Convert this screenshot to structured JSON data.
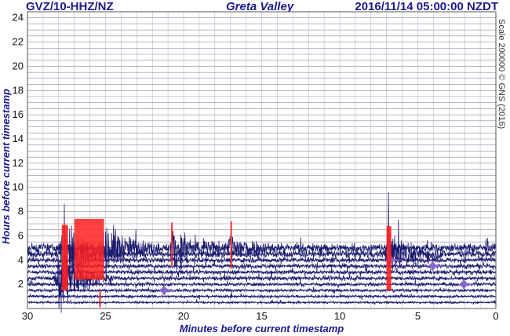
{
  "header": {
    "station": "GVZ/10-HHZ/NZ",
    "place": "Greta Valley",
    "timestamp": "2016/11/14 05:00:00 NZDT"
  },
  "side_note": "Scale 200000 © GNS (2016)",
  "colors": {
    "trace_main": "#1a1a6e",
    "trace_highlight": "#8866cc",
    "event_mark": "#ff2020",
    "grid": "#8a8aa0",
    "title_text": "#1a1a8c"
  },
  "chart_data": {
    "type": "line",
    "title": "Greta Valley",
    "xlabel": "Minutes before current timestamp",
    "ylabel": "Hours before current timestamp",
    "xlim": [
      30,
      0
    ],
    "ylim": [
      0,
      24.5
    ],
    "x_ticks": [
      30,
      25,
      20,
      15,
      10,
      5,
      0
    ],
    "y_ticks": [
      2,
      4,
      6,
      8,
      10,
      12,
      14,
      16,
      18,
      20,
      22,
      24
    ],
    "grid": true,
    "trace_rows_hours": [
      0.5,
      1.0,
      1.5,
      2.0,
      2.5,
      3.0,
      3.5,
      4.0,
      4.5,
      5.0
    ],
    "event_markers": [
      {
        "x_from": 27.0,
        "x_to": 25.1,
        "y_from": 2.4,
        "y_to": 7.4
      },
      {
        "x_from": 27.8,
        "x_to": 27.4,
        "y_from": 1.5,
        "y_to": 6.9
      },
      {
        "x_from": 25.4,
        "x_to": 25.3,
        "y_from": 0.1,
        "y_to": 1.5
      },
      {
        "x_from": 20.8,
        "x_to": 20.7,
        "y_from": 3.5,
        "y_to": 7.1
      },
      {
        "x_from": 17.0,
        "x_to": 16.9,
        "y_from": 3.3,
        "y_to": 7.2
      },
      {
        "x_from": 7.0,
        "x_to": 6.7,
        "y_from": 1.5,
        "y_to": 6.8
      }
    ],
    "bursts": [
      {
        "row_hours": 5.0,
        "x_minutes": 25.0,
        "amplitude_hours": 1.6
      },
      {
        "row_hours": 5.0,
        "x_minutes": 20.7,
        "amplitude_hours": 1.2
      },
      {
        "row_hours": 5.0,
        "x_minutes": 17.0,
        "amplitude_hours": 0.9
      },
      {
        "row_hours": 4.5,
        "x_minutes": 27.7,
        "amplitude_hours": 2.2
      },
      {
        "row_hours": 4.5,
        "x_minutes": 6.9,
        "amplitude_hours": 1.4
      },
      {
        "row_hours": 2.5,
        "x_minutes": 28.0,
        "amplitude_hours": 2.0
      }
    ],
    "highlights": [
      {
        "row_hours": 4.0,
        "x_minutes": 26.5
      },
      {
        "row_hours": 4.0,
        "x_minutes": 6.5
      },
      {
        "row_hours": 3.5,
        "x_minutes": 3.8
      },
      {
        "row_hours": 1.5,
        "x_minutes": 21.0
      },
      {
        "row_hours": 2.0,
        "x_minutes": 1.8
      }
    ]
  }
}
